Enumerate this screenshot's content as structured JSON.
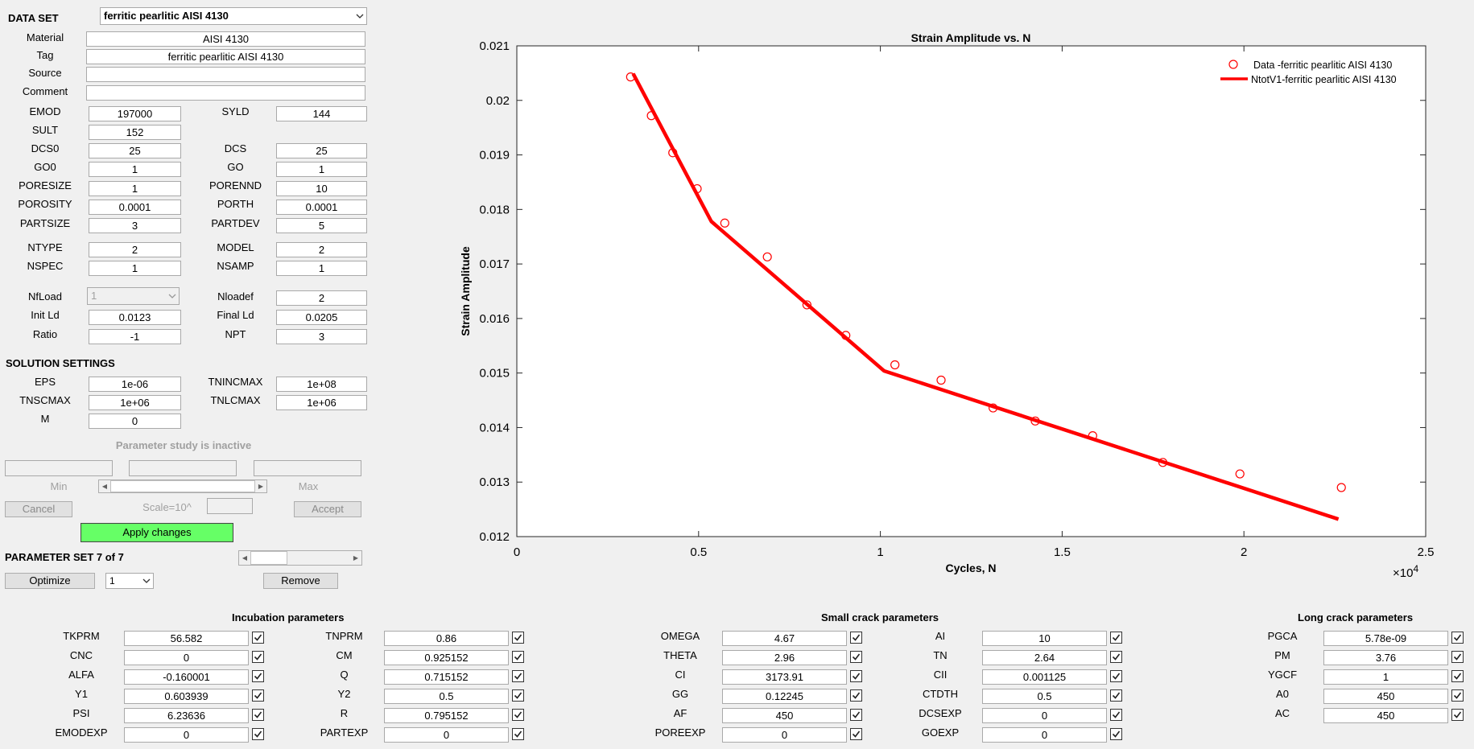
{
  "dataset": {
    "label": "DATA SET",
    "selected": "ferritic pearlitic AISI 4130"
  },
  "material": {
    "label": "Material",
    "value": "AISI 4130"
  },
  "tag": {
    "label": "Tag",
    "value": "ferritic pearlitic AISI 4130"
  },
  "source": {
    "label": "Source",
    "value": ""
  },
  "comment": {
    "label": "Comment",
    "value": ""
  },
  "props": [
    {
      "label": "EMOD",
      "value": "197000"
    },
    {
      "label": "SYLD",
      "value": "144"
    },
    {
      "label": "SULT",
      "value": "152"
    },
    {
      "label": "DCS0",
      "value": "25"
    },
    {
      "label": "DCS",
      "value": "25"
    },
    {
      "label": "GO0",
      "value": "1"
    },
    {
      "label": "GO",
      "value": "1"
    },
    {
      "label": "PORESIZE",
      "value": "1"
    },
    {
      "label": "PORENND",
      "value": "10"
    },
    {
      "label": "POROSITY",
      "value": "0.0001"
    },
    {
      "label": "PORTH",
      "value": "0.0001"
    },
    {
      "label": "PARTSIZE",
      "value": "3"
    },
    {
      "label": "PARTDEV",
      "value": "5"
    },
    {
      "label": "NTYPE",
      "value": "2"
    },
    {
      "label": "MODEL",
      "value": "2"
    },
    {
      "label": "NSPEC",
      "value": "1"
    },
    {
      "label": "NSAMP",
      "value": "1"
    },
    {
      "label": "NfLoad",
      "value": "1"
    },
    {
      "label": "Nloadef",
      "value": "2"
    },
    {
      "label": "Init Ld",
      "value": "0.0123"
    },
    {
      "label": "Final Ld",
      "value": "0.0205"
    },
    {
      "label": "Ratio",
      "value": "-1"
    },
    {
      "label": "NPT",
      "value": "3"
    }
  ],
  "solution": {
    "title": "SOLUTION SETTINGS",
    "items": [
      {
        "label": "EPS",
        "value": "1e-06"
      },
      {
        "label": "TNINCMAX",
        "value": "1e+08"
      },
      {
        "label": "TNSCMAX",
        "value": "1e+06"
      },
      {
        "label": "TNLCMAX",
        "value": "1e+06"
      },
      {
        "label": "M",
        "value": "0"
      }
    ]
  },
  "param_study": {
    "status": "Parameter study is inactive",
    "min_label": "Min",
    "max_label": "Max",
    "scale_label": "Scale=10^",
    "cancel": "Cancel",
    "accept": "Accept"
  },
  "apply_label": "Apply changes",
  "param_set": {
    "label": "PARAMETER SET 7 of 7",
    "optimize": "Optimize",
    "select": "1",
    "remove": "Remove"
  },
  "incubation": {
    "title": "Incubation parameters",
    "items": [
      {
        "label": "TKPRM",
        "value": "56.582",
        "checked": true
      },
      {
        "label": "TNPRM",
        "value": "0.86",
        "checked": true
      },
      {
        "label": "CNC",
        "value": "0",
        "checked": true
      },
      {
        "label": "CM",
        "value": "0.925152",
        "checked": true
      },
      {
        "label": "ALFA",
        "value": "-0.160001",
        "checked": true
      },
      {
        "label": "Q",
        "value": "0.715152",
        "checked": true
      },
      {
        "label": "Y1",
        "value": "0.603939",
        "checked": true
      },
      {
        "label": "Y2",
        "value": "0.5",
        "checked": true
      },
      {
        "label": "PSI",
        "value": "6.23636",
        "checked": true
      },
      {
        "label": "R",
        "value": "0.795152",
        "checked": true
      },
      {
        "label": "EMODEXP",
        "value": "0",
        "checked": true
      },
      {
        "label": "PARTEXP",
        "value": "0",
        "checked": true
      }
    ]
  },
  "small_crack": {
    "title": "Small crack parameters",
    "items": [
      {
        "label": "OMEGA",
        "value": "4.67",
        "checked": true
      },
      {
        "label": "AI",
        "value": "10",
        "checked": true
      },
      {
        "label": "THETA",
        "value": "2.96",
        "checked": true
      },
      {
        "label": "TN",
        "value": "2.64",
        "checked": true
      },
      {
        "label": "CI",
        "value": "3173.91",
        "checked": true
      },
      {
        "label": "CII",
        "value": "0.001125",
        "checked": true
      },
      {
        "label": "GG",
        "value": "0.12245",
        "checked": true
      },
      {
        "label": "CTDTH",
        "value": "0.5",
        "checked": true
      },
      {
        "label": "AF",
        "value": "450",
        "checked": true
      },
      {
        "label": "DCSEXP",
        "value": "0",
        "checked": true
      },
      {
        "label": "POREEXP",
        "value": "0",
        "checked": true
      },
      {
        "label": "GOEXP",
        "value": "0",
        "checked": true
      }
    ]
  },
  "long_crack": {
    "title": "Long crack parameters",
    "items": [
      {
        "label": "PGCA",
        "value": "5.78e-09",
        "checked": true
      },
      {
        "label": "PM",
        "value": "3.76",
        "checked": true
      },
      {
        "label": "YGCF",
        "value": "1",
        "checked": true
      },
      {
        "label": "A0",
        "value": "450",
        "checked": true
      },
      {
        "label": "AC",
        "value": "450",
        "checked": true
      }
    ]
  },
  "chart_data": {
    "type": "line",
    "title": "Strain Amplitude vs. N",
    "xlabel": "Cycles, N",
    "ylabel": "Strain Amplitude",
    "xlim": [
      0,
      25000
    ],
    "ylim": [
      0.012,
      0.021
    ],
    "x_multiplier": "×10",
    "x_multiplier_exp": "4",
    "x_ticks": [
      0,
      5000,
      10000,
      15000,
      20000,
      25000
    ],
    "x_tick_labels": [
      "0",
      "0.5",
      "1",
      "1.5",
      "2",
      "2.5"
    ],
    "y_ticks": [
      0.012,
      0.013,
      0.014,
      0.015,
      0.016,
      0.017,
      0.018,
      0.019,
      0.02,
      0.021
    ],
    "y_tick_labels": [
      "0.012",
      "0.013",
      "0.014",
      "0.015",
      "0.016",
      "0.017",
      "0.018",
      "0.019",
      "0.02",
      "0.021"
    ],
    "grid": false,
    "legend": "top-right",
    "series": [
      {
        "name": "Data -ferritic pearlitic AISI 4130",
        "style": "markers",
        "color": "#ff0000",
        "x": [
          3130,
          3700,
          4290,
          4960,
          5720,
          6890,
          7980,
          9050,
          10400,
          11670,
          13100,
          14260,
          15840,
          17770,
          19890,
          22680
        ],
        "y": [
          0.02043,
          0.01972,
          0.01904,
          0.01838,
          0.01775,
          0.01713,
          0.01625,
          0.01569,
          0.01515,
          0.01487,
          0.01436,
          0.01412,
          0.01385,
          0.01336,
          0.01315,
          0.0129
        ]
      },
      {
        "name": "NtotV1-ferritic pearlitic AISI 4130",
        "style": "line",
        "color": "#ff0000",
        "x": [
          3200,
          5350,
          10100,
          22600
        ],
        "y": [
          0.02049,
          0.01778,
          0.01504,
          0.01232
        ]
      }
    ]
  }
}
